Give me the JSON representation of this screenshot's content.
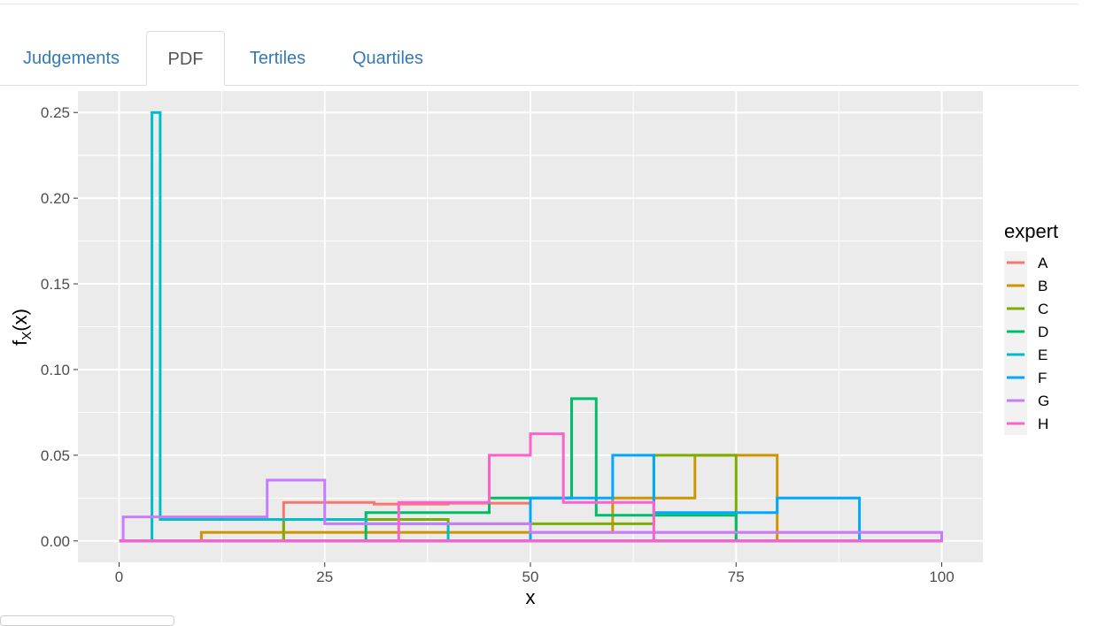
{
  "tabs": [
    {
      "label": "Judgements",
      "active": false
    },
    {
      "label": "PDF",
      "active": true
    },
    {
      "label": "Tertiles",
      "active": false
    },
    {
      "label": "Quartiles",
      "active": false
    }
  ],
  "colors": {
    "panel_bg": "#EBEBEB",
    "grid": "#FFFFFF",
    "tab_link": "#337ab7",
    "tab_active": "#555555"
  },
  "chart_data": {
    "type": "line",
    "step": true,
    "xlabel": "x",
    "ylabel_main": "f",
    "ylabel_sub": "X",
    "ylabel_tail": "(x)",
    "xlim": [
      -5,
      105
    ],
    "ylim": [
      -0.0125,
      0.2625
    ],
    "x_ticks": [
      {
        "value": 0,
        "label": "0"
      },
      {
        "value": 25,
        "label": "25"
      },
      {
        "value": 50,
        "label": "50"
      },
      {
        "value": 75,
        "label": "75"
      },
      {
        "value": 100,
        "label": "100"
      }
    ],
    "y_ticks": [
      {
        "value": 0,
        "label": "0.00"
      },
      {
        "value": 0.05,
        "label": "0.05"
      },
      {
        "value": 0.1,
        "label": "0.10"
      },
      {
        "value": 0.15,
        "label": "0.15"
      },
      {
        "value": 0.2,
        "label": "0.20"
      },
      {
        "value": 0.25,
        "label": "0.25"
      }
    ],
    "grid": true,
    "legend_title": "expert",
    "legend_position": "right",
    "series": [
      {
        "name": "A",
        "color": "#F8766D",
        "breaks": [
          0,
          20,
          31,
          40,
          50,
          100
        ],
        "densities": [
          0,
          0.0225,
          0.0215,
          0.022,
          0.005
        ]
      },
      {
        "name": "B",
        "color": "#CD9600",
        "breaks": [
          0,
          10,
          60,
          70,
          80,
          100
        ],
        "densities": [
          0,
          0.005,
          0.025,
          0.05,
          0
        ]
      },
      {
        "name": "C",
        "color": "#7CAE00",
        "breaks": [
          0,
          20,
          40,
          65,
          75,
          100
        ],
        "densities": [
          0,
          0.0125,
          0.01,
          0.05,
          0
        ]
      },
      {
        "name": "D",
        "color": "#00BE67",
        "breaks": [
          0,
          30,
          45,
          55,
          58,
          75,
          100
        ],
        "densities": [
          0,
          0.0165,
          0.025,
          0.083,
          0.015,
          0
        ]
      },
      {
        "name": "E",
        "color": "#00BFC4",
        "breaks": [
          0,
          4,
          5,
          30,
          40,
          100
        ],
        "densities": [
          0,
          0.25,
          0.0125,
          0.01,
          0.0
        ]
      },
      {
        "name": "F",
        "color": "#00A9FF",
        "breaks": [
          0,
          50,
          60,
          65,
          80,
          90,
          100
        ],
        "densities": [
          0,
          0.025,
          0.05,
          0.0165,
          0.025,
          0
        ]
      },
      {
        "name": "G",
        "color": "#C77CFF",
        "breaks": [
          0,
          0.5,
          18,
          25,
          50,
          100
        ],
        "densities": [
          0,
          0.014,
          0.0355,
          0.01,
          0.005
        ]
      },
      {
        "name": "H",
        "color": "#FF61CC",
        "breaks": [
          0,
          34,
          45,
          50,
          54,
          65,
          100
        ],
        "densities": [
          0,
          0.0225,
          0.05,
          0.0625,
          0.0225,
          0
        ]
      }
    ]
  }
}
